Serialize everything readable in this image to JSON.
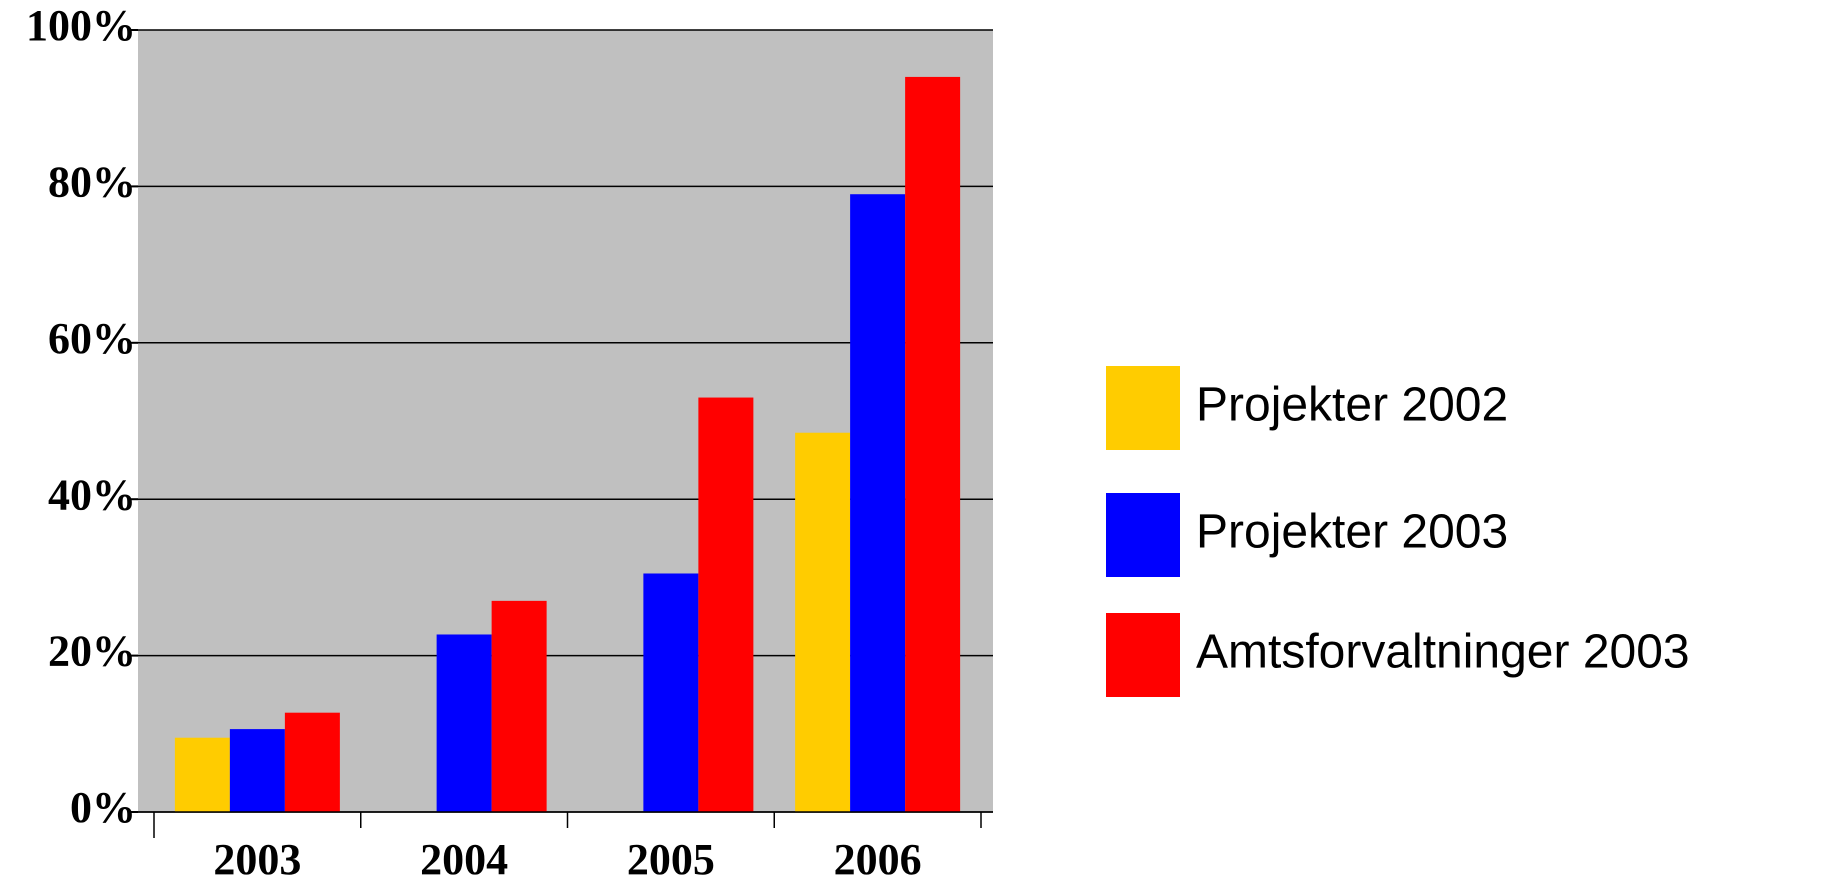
{
  "chart_data": {
    "type": "bar",
    "categories": [
      "2003",
      "2004",
      "2005",
      "2006"
    ],
    "series": [
      {
        "name": "Projekter 2002",
        "color": "#ffcc00",
        "values": [
          9.5,
          null,
          null,
          48.5
        ]
      },
      {
        "name": "Projekter 2003",
        "color": "#0000ff",
        "values": [
          10.6,
          22.7,
          30.5,
          79
        ]
      },
      {
        "name": "Amtsforvaltninger 2003",
        "color": "#ff0000",
        "values": [
          12.7,
          27,
          53,
          94
        ]
      }
    ],
    "ylim": [
      0,
      100
    ],
    "yticks": [
      {
        "value": 0,
        "label": "0%"
      },
      {
        "value": 20,
        "label": "20%"
      },
      {
        "value": 40,
        "label": "40%"
      },
      {
        "value": 60,
        "label": "60%"
      },
      {
        "value": 80,
        "label": "80%"
      },
      {
        "value": 100,
        "label": "100%"
      }
    ],
    "grid": true,
    "legend": "right"
  }
}
